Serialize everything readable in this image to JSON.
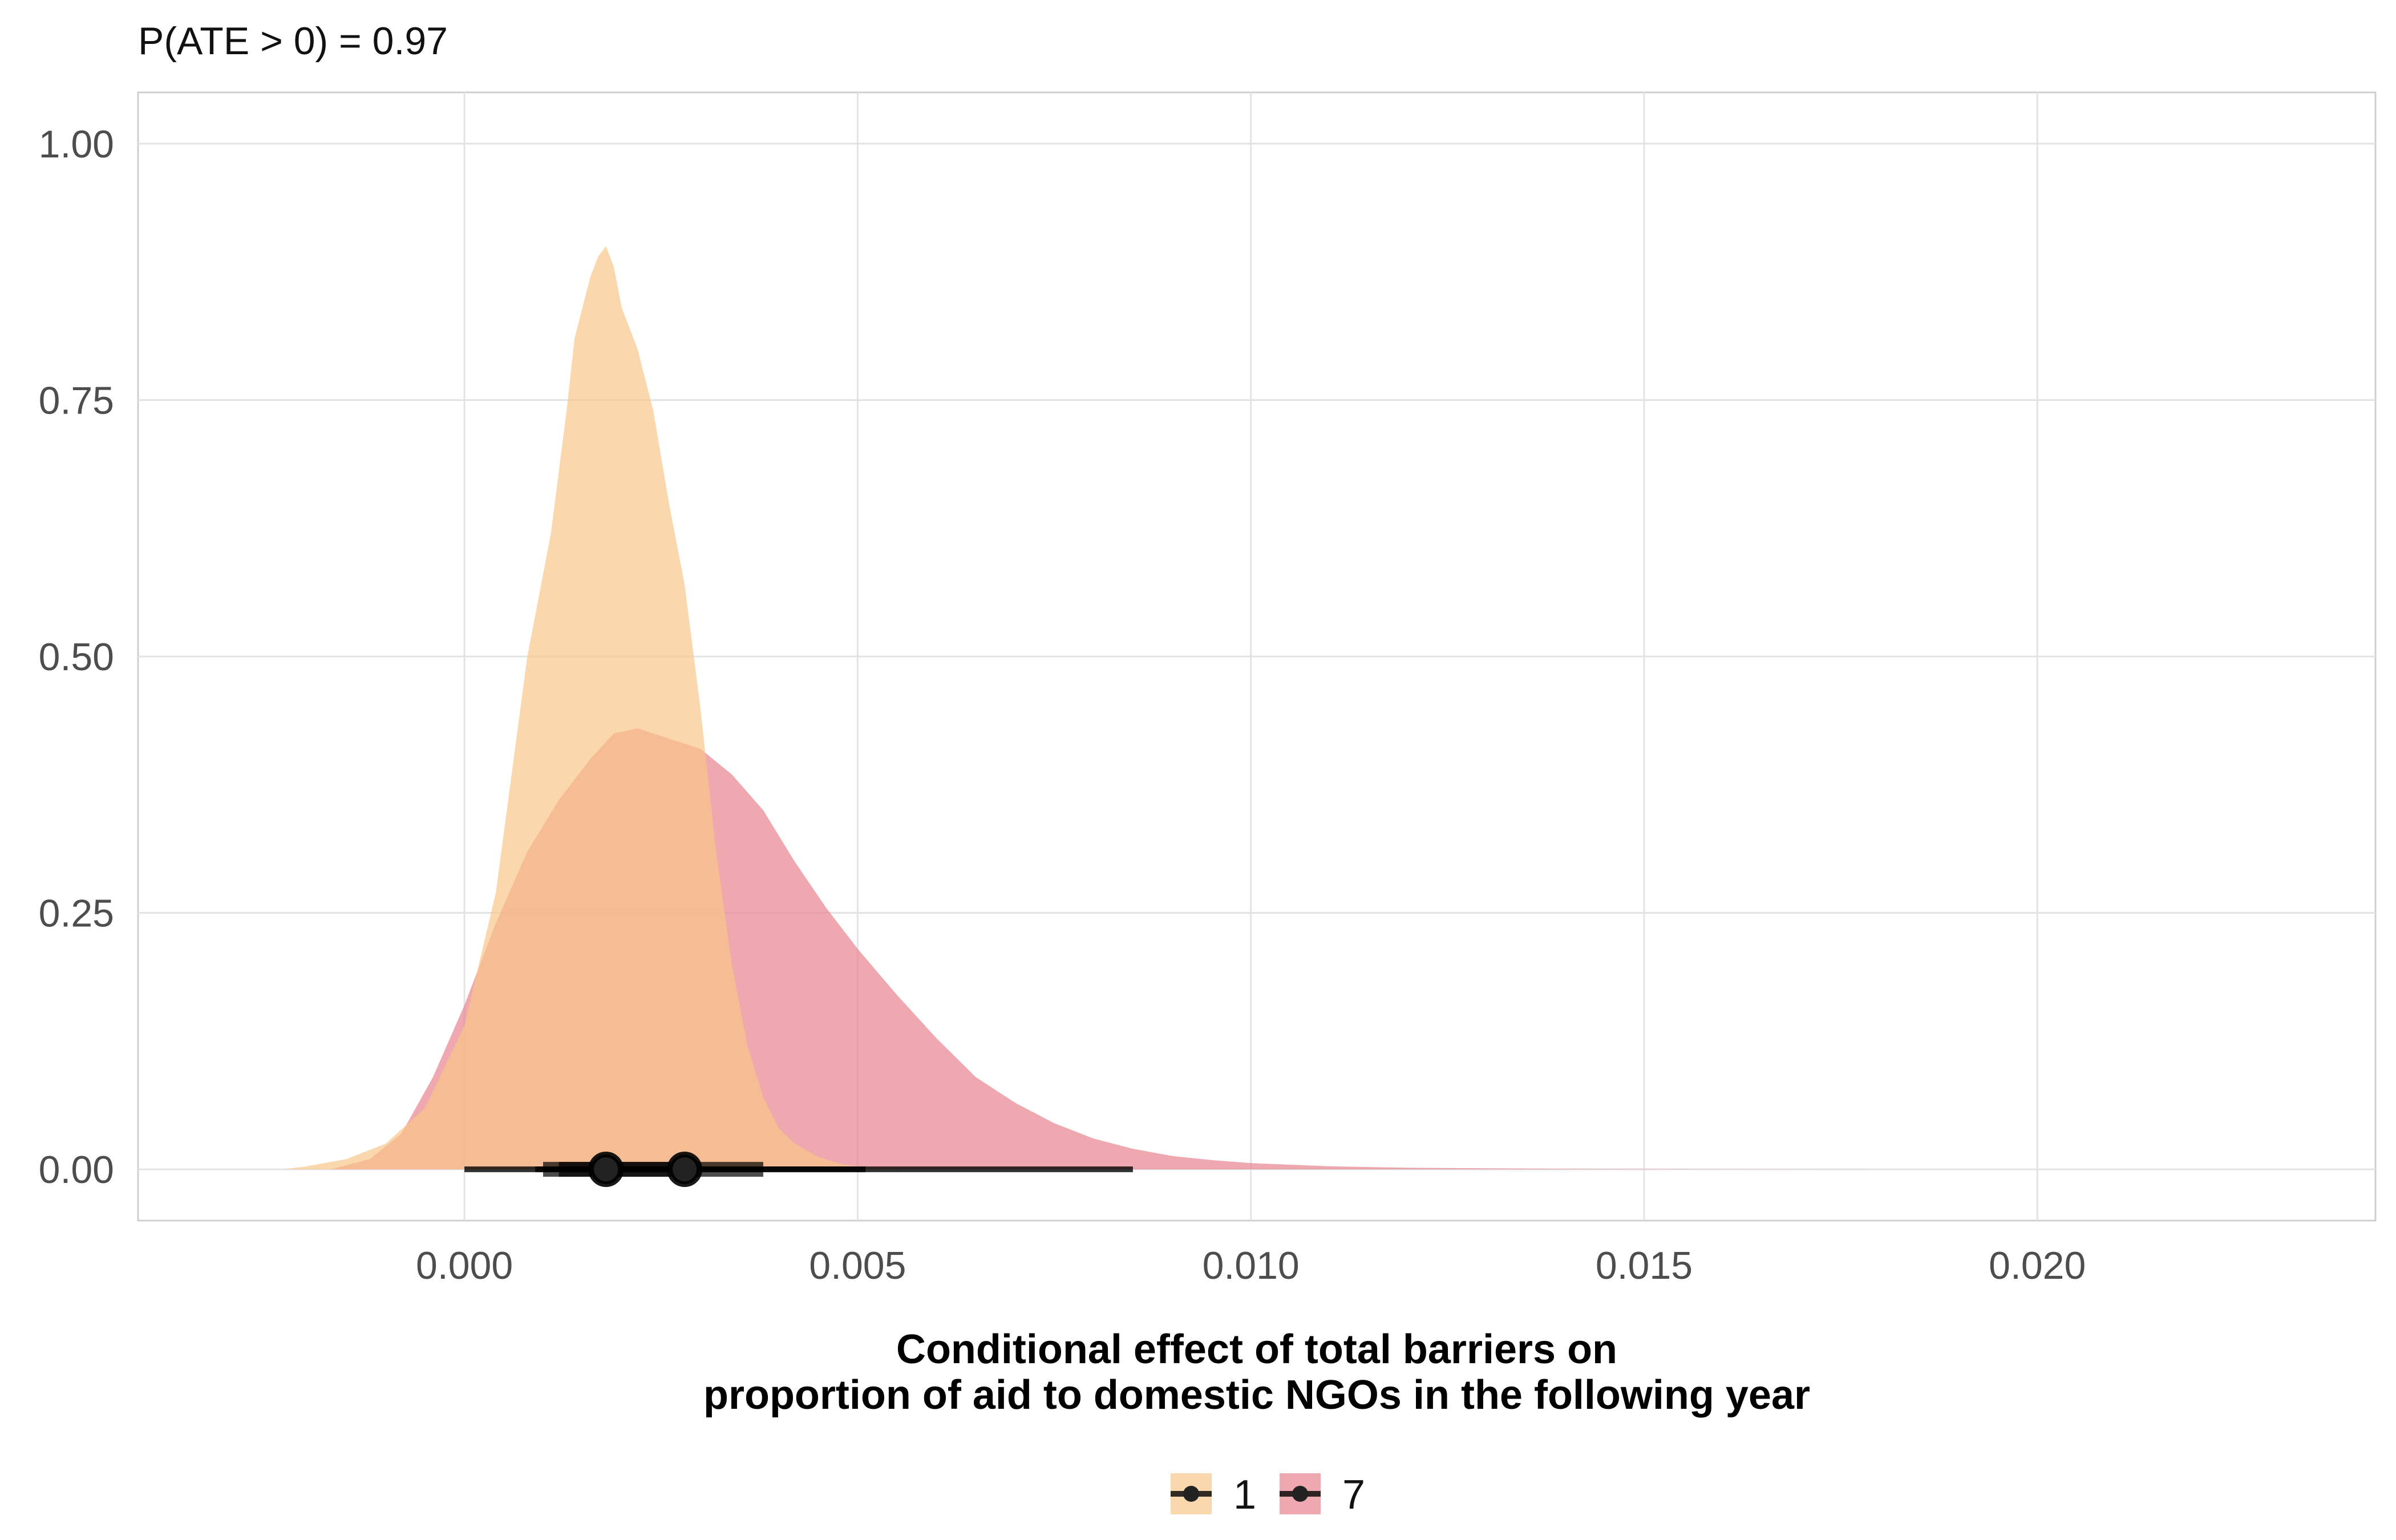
{
  "chart_data": {
    "type": "area",
    "subtitle": "P(ATE > 0) = 0.97",
    "xlabel": "Conditional effect of total barriers on\nproportion of aid to domestic NGOs in the following year",
    "ylabel": "",
    "xlim": [
      -0.00415,
      0.0243
    ],
    "ylim": [
      -0.05,
      1.05
    ],
    "x_ticks": [
      0.0,
      0.005,
      0.01,
      0.015,
      0.02
    ],
    "x_tick_labels": [
      "0.000",
      "0.005",
      "0.010",
      "0.015",
      "0.020"
    ],
    "y_ticks": [
      0.0,
      0.25,
      0.5,
      0.75,
      1.0
    ],
    "y_tick_labels": [
      "0.00",
      "0.25",
      "0.50",
      "0.75",
      "1.00"
    ],
    "grid": true,
    "legend_position": "bottom",
    "series": [
      {
        "name": "7",
        "color": "#e8838f",
        "density": [
          [
            -0.0017,
            0.0
          ],
          [
            -0.0012,
            0.01
          ],
          [
            -0.0008,
            0.035
          ],
          [
            -0.0004,
            0.09
          ],
          [
            0.0,
            0.16
          ],
          [
            0.0004,
            0.24
          ],
          [
            0.0008,
            0.31
          ],
          [
            0.0012,
            0.36
          ],
          [
            0.0016,
            0.4
          ],
          [
            0.0019,
            0.425
          ],
          [
            0.0022,
            0.43
          ],
          [
            0.0026,
            0.42
          ],
          [
            0.003,
            0.41
          ],
          [
            0.0034,
            0.385
          ],
          [
            0.0038,
            0.35
          ],
          [
            0.0042,
            0.3
          ],
          [
            0.0046,
            0.255
          ],
          [
            0.005,
            0.215
          ],
          [
            0.0055,
            0.17
          ],
          [
            0.006,
            0.128
          ],
          [
            0.0065,
            0.09
          ],
          [
            0.007,
            0.065
          ],
          [
            0.0075,
            0.045
          ],
          [
            0.008,
            0.03
          ],
          [
            0.0085,
            0.02
          ],
          [
            0.009,
            0.013
          ],
          [
            0.0095,
            0.009
          ],
          [
            0.01,
            0.006
          ],
          [
            0.011,
            0.003
          ],
          [
            0.012,
            0.0015
          ],
          [
            0.014,
            0.0005
          ],
          [
            0.016,
            0.0001
          ],
          [
            0.018,
            0.0
          ]
        ],
        "point": 0.0028,
        "interval_inner": [
          0.0012,
          0.0038
        ],
        "interval_outer": [
          0.0,
          0.0085
        ]
      },
      {
        "name": "1",
        "color": "#f9c68a",
        "density": [
          [
            -0.0023,
            0.0
          ],
          [
            -0.002,
            0.003
          ],
          [
            -0.0015,
            0.01
          ],
          [
            -0.001,
            0.025
          ],
          [
            -0.0005,
            0.06
          ],
          [
            0.0,
            0.14
          ],
          [
            0.0004,
            0.27
          ],
          [
            0.0008,
            0.5
          ],
          [
            0.0011,
            0.62
          ],
          [
            0.0013,
            0.74
          ],
          [
            0.0014,
            0.81
          ],
          [
            0.0015,
            0.84
          ],
          [
            0.0016,
            0.87
          ],
          [
            0.0017,
            0.89
          ],
          [
            0.0018,
            0.9
          ],
          [
            0.0019,
            0.88
          ],
          [
            0.002,
            0.84
          ],
          [
            0.0022,
            0.8
          ],
          [
            0.0024,
            0.74
          ],
          [
            0.0026,
            0.65
          ],
          [
            0.0028,
            0.57
          ],
          [
            0.003,
            0.45
          ],
          [
            0.0032,
            0.31
          ],
          [
            0.0034,
            0.2
          ],
          [
            0.0036,
            0.12
          ],
          [
            0.0038,
            0.07
          ],
          [
            0.004,
            0.04
          ],
          [
            0.0042,
            0.025
          ],
          [
            0.0045,
            0.012
          ],
          [
            0.0048,
            0.005
          ],
          [
            0.0052,
            0.001
          ],
          [
            0.0055,
            0.0
          ]
        ],
        "point": 0.0018,
        "interval_inner": [
          0.001,
          0.0026
        ],
        "interval_outer": [
          0.0009,
          0.0051
        ]
      }
    ],
    "legend": [
      {
        "label": "1",
        "color": "#f9c68a"
      },
      {
        "label": "7",
        "color": "#e8838f"
      }
    ]
  }
}
